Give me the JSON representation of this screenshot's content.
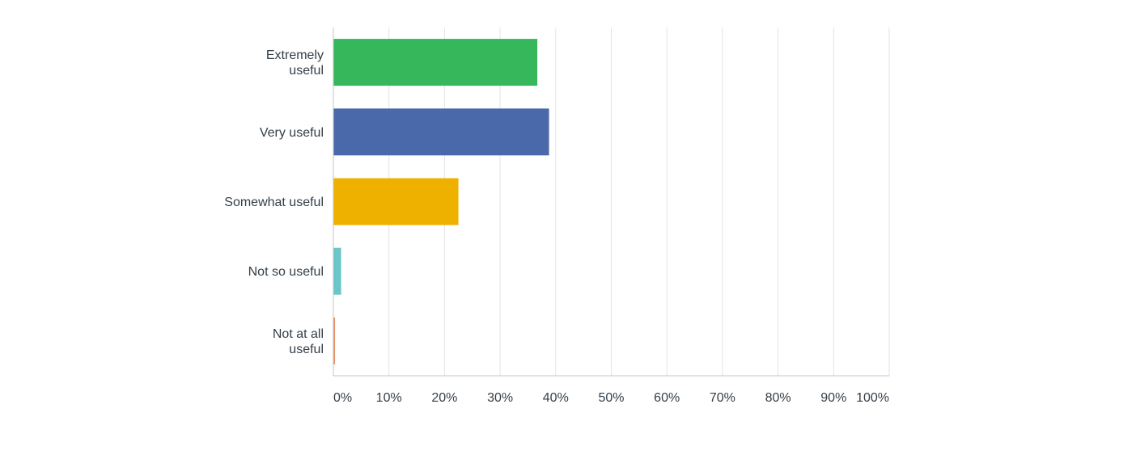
{
  "chart_data": {
    "type": "bar",
    "orientation": "horizontal",
    "categories": [
      "Extremely useful",
      "Very useful",
      "Somewhat useful",
      "Not so useful",
      "Not at all useful"
    ],
    "category_label_lines": [
      [
        "Extremely",
        "useful"
      ],
      [
        "Very useful"
      ],
      [
        "Somewhat useful"
      ],
      [
        "Not so useful"
      ],
      [
        "Not at all",
        "useful"
      ]
    ],
    "values": [
      36.7,
      38.8,
      22.5,
      1.4,
      0.3
    ],
    "colors": [
      "#37b75b",
      "#4a69aa",
      "#efb100",
      "#6bc6c8",
      "#e59066"
    ],
    "x_ticks": [
      "0%",
      "10%",
      "20%",
      "30%",
      "40%",
      "50%",
      "60%",
      "70%",
      "80%",
      "90%",
      "100%"
    ],
    "xlim": [
      0,
      100
    ],
    "grid": true,
    "legend": "none",
    "title": "",
    "xlabel": "",
    "ylabel": ""
  }
}
